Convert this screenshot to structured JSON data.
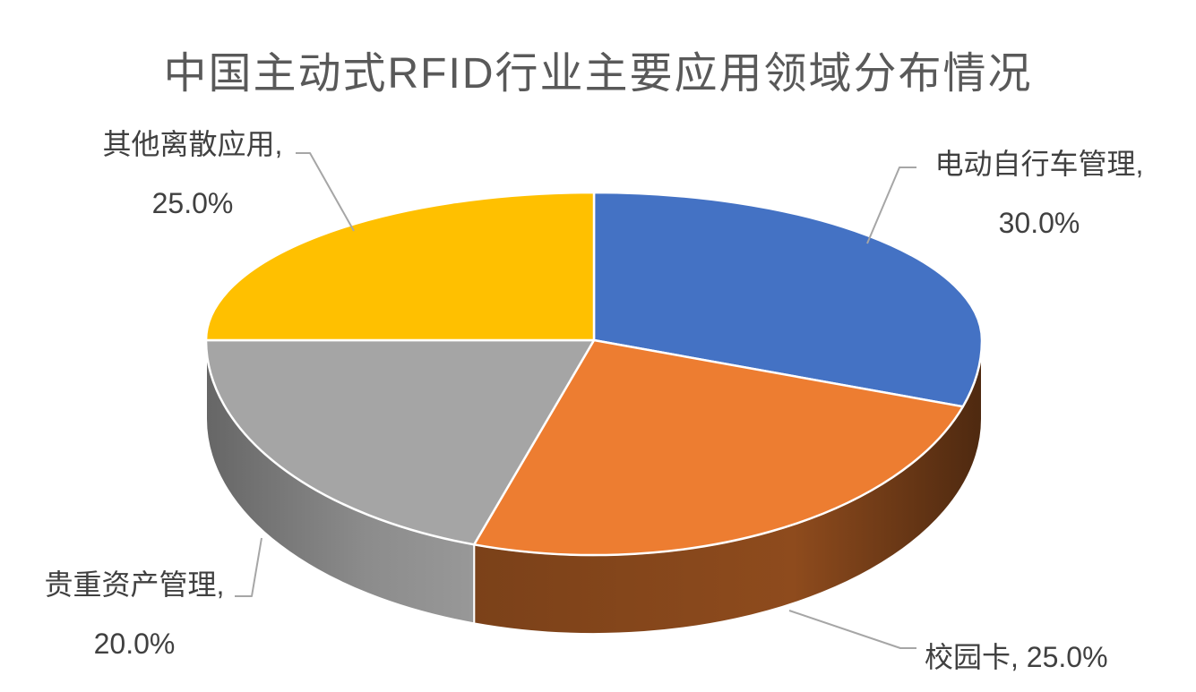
{
  "chart_data": {
    "type": "pie",
    "style": "3d-pie",
    "title": "中国主动式RFID行业主要应用领域分布情况",
    "labels": [
      "电动自行车管理",
      "校园卡",
      "贵重资产管理",
      "其他离散应用"
    ],
    "values": [
      30.0,
      25.0,
      20.0,
      25.0
    ],
    "value_unit": "%",
    "colors": [
      "#4472C4",
      "#ED7D31",
      "#A5A5A5",
      "#FFC000"
    ],
    "legend": "none",
    "data_labels": "outside-with-leader-lines",
    "callouts": [
      {
        "line1": "电动自行车管理,",
        "line2": "30.0%"
      },
      {
        "line1": "校园卡, 25.0%",
        "line2": ""
      },
      {
        "line1": "贵重资产管理,",
        "line2": "20.0%"
      },
      {
        "line1": "其他离散应用,",
        "line2": "25.0%"
      }
    ],
    "title_color": "#595959",
    "label_color": "#404040",
    "leader_line_color": "#A6A6A6",
    "separator_color": "#FFFFFF",
    "background": "#FFFFFF"
  }
}
